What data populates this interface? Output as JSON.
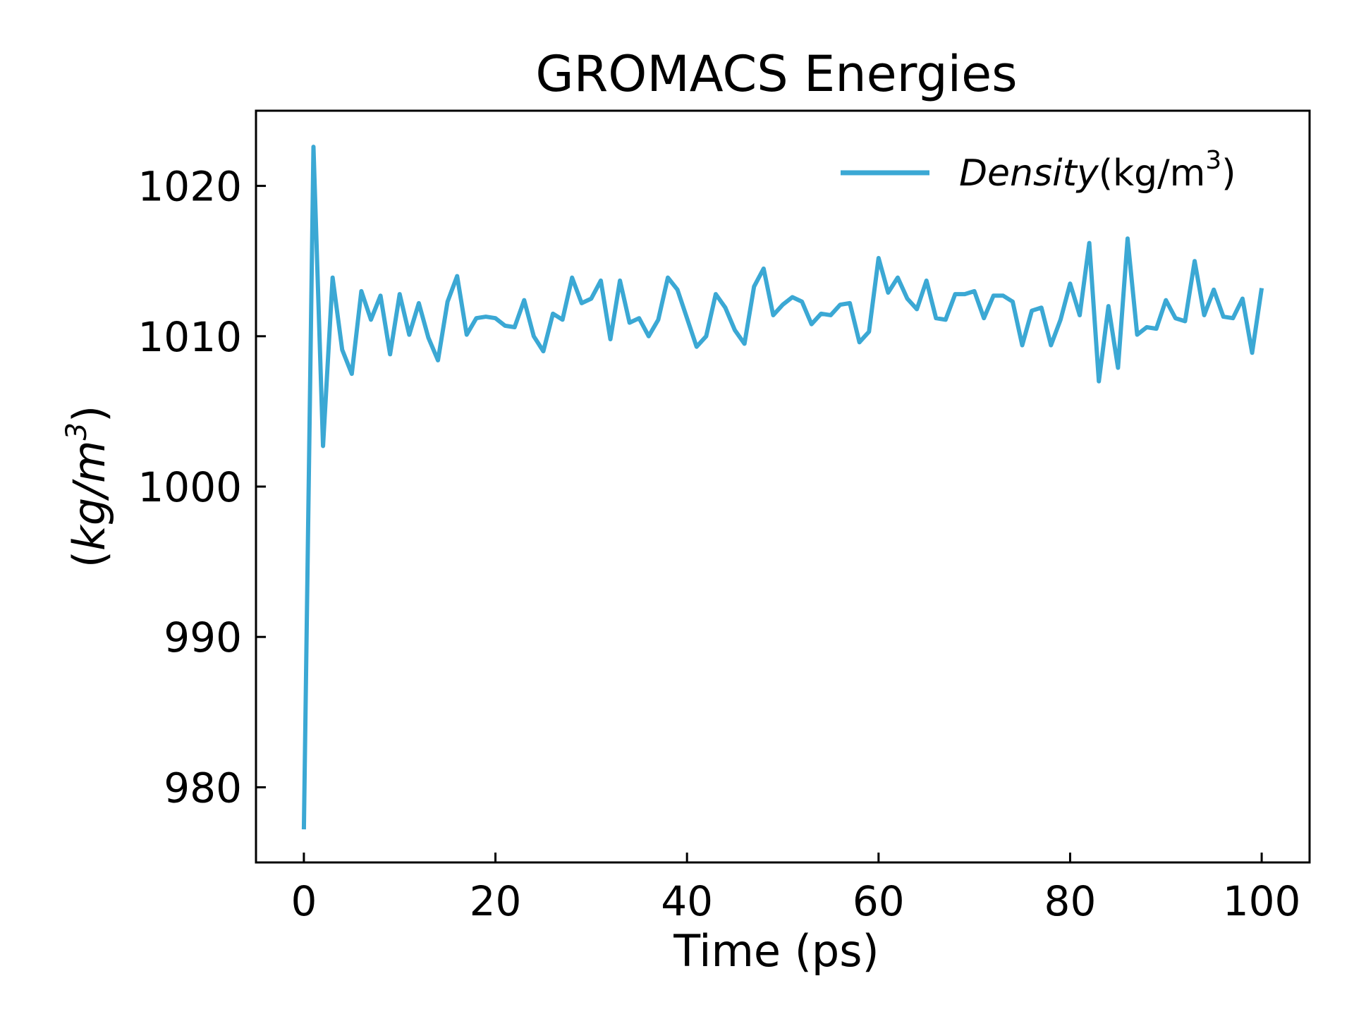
{
  "chart_data": {
    "type": "line",
    "title": "GROMACS Energies",
    "xlabel": "Time (ps)",
    "ylabel_paren_open": "(",
    "ylabel": "kg/m",
    "ylabel_sup": "3",
    "ylabel_paren_close": ")",
    "xlim": [
      -5,
      105
    ],
    "ylim": [
      975,
      1025
    ],
    "xticks": [
      0,
      20,
      40,
      60,
      80,
      100
    ],
    "yticks": [
      980,
      990,
      1000,
      1010,
      1020
    ],
    "grid": false,
    "legend_position": "top-right",
    "series": [
      {
        "name": "Density(kg/m³)",
        "legend_main": "Density",
        "legend_unit": "(kg/m",
        "legend_sup": "3",
        "legend_close": ")",
        "color": "#3ba8d4",
        "x": [
          0,
          1,
          2,
          3,
          4,
          5,
          6,
          7,
          8,
          9,
          10,
          11,
          12,
          13,
          14,
          15,
          16,
          17,
          18,
          19,
          20,
          21,
          22,
          23,
          24,
          25,
          26,
          27,
          28,
          29,
          30,
          31,
          32,
          33,
          34,
          35,
          36,
          37,
          38,
          39,
          40,
          41,
          42,
          43,
          44,
          45,
          46,
          47,
          48,
          49,
          50,
          51,
          52,
          53,
          54,
          55,
          56,
          57,
          58,
          59,
          60,
          61,
          62,
          63,
          64,
          65,
          66,
          67,
          68,
          69,
          70,
          71,
          72,
          73,
          74,
          75,
          76,
          77,
          78,
          79,
          80,
          81,
          82,
          83,
          84,
          85,
          86,
          87,
          88,
          89,
          90,
          91,
          92,
          93,
          94,
          95,
          96,
          97,
          98,
          99,
          100
        ],
        "y": [
          977.2,
          1022.6,
          1002.7,
          1013.9,
          1009.1,
          1007.5,
          1013.0,
          1011.1,
          1012.7,
          1008.8,
          1012.8,
          1010.1,
          1012.2,
          1009.9,
          1008.4,
          1012.3,
          1014.0,
          1010.1,
          1011.2,
          1011.3,
          1011.2,
          1010.7,
          1010.6,
          1012.4,
          1010.0,
          1009.0,
          1011.5,
          1011.1,
          1013.9,
          1012.2,
          1012.5,
          1013.7,
          1009.8,
          1013.7,
          1010.9,
          1011.2,
          1010.0,
          1011.1,
          1013.9,
          1013.1,
          1011.2,
          1009.3,
          1010.0,
          1012.8,
          1011.9,
          1010.4,
          1009.5,
          1013.3,
          1014.5,
          1011.4,
          1012.1,
          1012.6,
          1012.3,
          1010.8,
          1011.5,
          1011.4,
          1012.1,
          1012.2,
          1009.6,
          1010.3,
          1015.2,
          1012.9,
          1013.9,
          1012.5,
          1011.8,
          1013.7,
          1011.2,
          1011.1,
          1012.8,
          1012.8,
          1013.0,
          1011.2,
          1012.7,
          1012.7,
          1012.3,
          1009.4,
          1011.7,
          1011.9,
          1009.4,
          1011.1,
          1013.5,
          1011.4,
          1016.2,
          1007.0,
          1012.0,
          1007.9,
          1016.5,
          1010.1,
          1010.6,
          1010.5,
          1012.4,
          1011.2,
          1011.0,
          1015.0,
          1011.4,
          1013.1,
          1011.3,
          1011.2,
          1012.5,
          1008.9,
          1013.2
        ]
      }
    ]
  }
}
